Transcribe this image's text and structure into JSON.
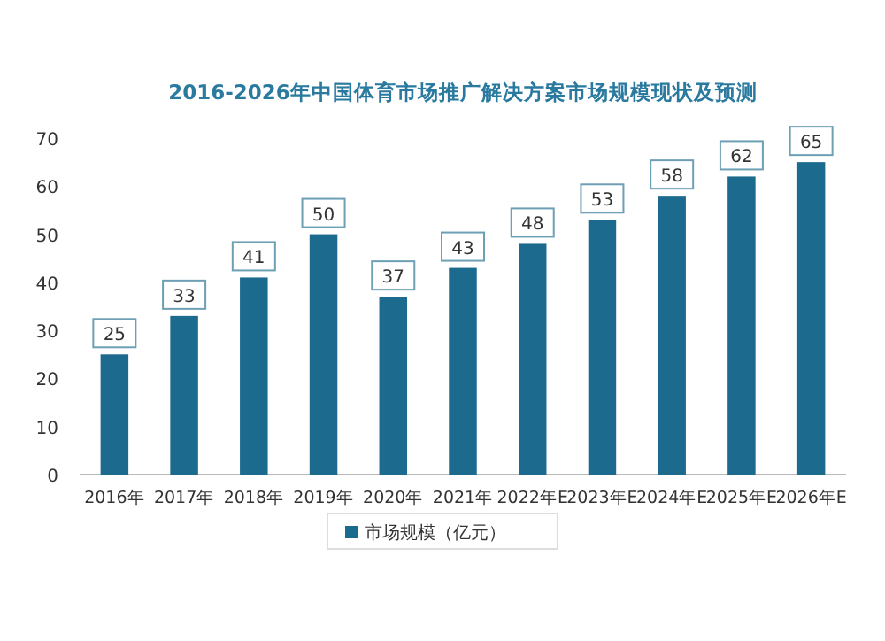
{
  "chart_data": {
    "type": "bar",
    "title": "2016-2026年中国体育市场推广解决方案市场规模现状及预测",
    "categories": [
      "2016年",
      "2017年",
      "2018年",
      "2019年",
      "2020年",
      "2021年",
      "2022年E",
      "2023年E",
      "2024年E",
      "2025年E",
      "2026年E"
    ],
    "series": [
      {
        "name": "市场规模（亿元）",
        "color": "#1d6a8f",
        "values": [
          25,
          33,
          41,
          50,
          37,
          43,
          48,
          53,
          58,
          62,
          65
        ]
      }
    ],
    "ylim": [
      0,
      70
    ],
    "yticks": [
      0,
      10,
      20,
      30,
      40,
      50,
      60,
      70
    ],
    "data_labels": true,
    "legend": "bottom",
    "grid": false
  }
}
